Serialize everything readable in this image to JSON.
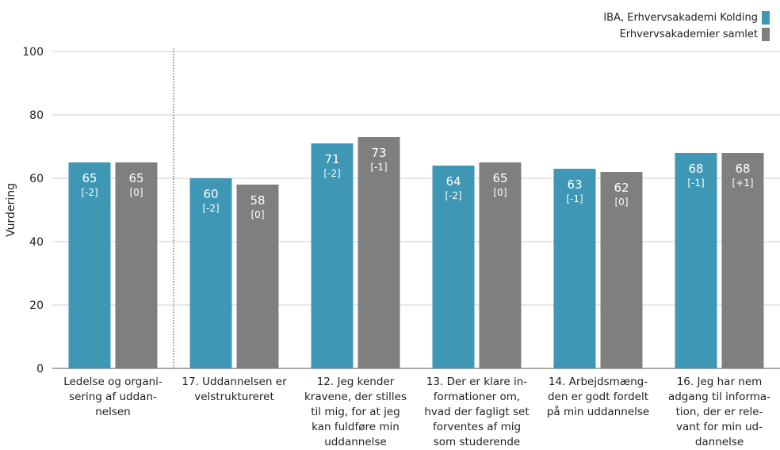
{
  "chart_data": {
    "type": "bar",
    "ylabel": "Vurdering",
    "ylim": [
      0,
      100
    ],
    "yticks": [
      0,
      20,
      40,
      60,
      80,
      100
    ],
    "grid": true,
    "legend_position": "top-right",
    "separator_after_category": 0,
    "categories": [
      [
        "Ledelse og organi-",
        "sering af uddan-",
        "nelsen"
      ],
      [
        "17. Uddannelsen er",
        "velstruktureret"
      ],
      [
        "12. Jeg kender",
        "kravene, der stilles",
        "til mig, for at jeg",
        "kan fuldføre min",
        "uddannelse"
      ],
      [
        "13. Der er klare in-",
        "formationer om,",
        "hvad der fagligt set",
        "forventes af mig",
        "som studerende"
      ],
      [
        "14. Arbejdsmæng-",
        "den er godt fordelt",
        "på min uddannelse"
      ],
      [
        "16. Jeg har nem",
        "adgang til informa-",
        "tion, der er rele-",
        "vant for min ud-",
        "dannelse"
      ]
    ],
    "series": [
      {
        "name": "IBA, Erhvervsakademi Kolding",
        "color": "#3d97b5",
        "values": [
          65,
          60,
          71,
          64,
          63,
          68
        ],
        "changes": [
          "[-2]",
          "[-2]",
          "[-2]",
          "[-2]",
          "[-1]",
          "[-1]"
        ]
      },
      {
        "name": "Erhvervsakademier samlet",
        "color": "#7f7f7f",
        "values": [
          65,
          58,
          73,
          65,
          62,
          68
        ],
        "changes": [
          "[0]",
          "[0]",
          "[-1]",
          "[0]",
          "[0]",
          "[+1]"
        ]
      }
    ]
  }
}
